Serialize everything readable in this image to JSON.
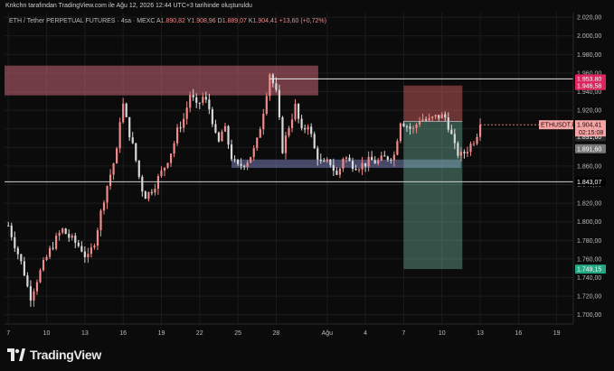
{
  "header": {
    "credit": "Knkchn tarafından TradingView.com ile Ağu 12, 2026 12:44 UTC+3 tarihinde oluşturuldu"
  },
  "symbol_bar": {
    "name": "ETH / Tether PERPETUAL FUTURES · 4sa · MEXC",
    "o_label": "A",
    "o_value": "1.890,82",
    "h_label": "Y",
    "h_value": "1.908,96",
    "l_label": "D",
    "l_value": "1.889,07",
    "c_label": "K",
    "c_value": "1.904,41",
    "change": "+13,60 (+0,72%)"
  },
  "brand": {
    "name": "TradingView"
  },
  "colors": {
    "up": "#f28b8b",
    "down": "#d9d9d9",
    "bg": "#0b0b0b",
    "grid": "#1c1c1c",
    "accent_red": "#e0245e"
  },
  "chart_data": {
    "type": "candlestick",
    "timeframe": "4h",
    "ylim": [
      1690,
      2025
    ],
    "y_ticks": [
      "2.020,00",
      "2.000,00",
      "1.980,00",
      "1.960,00",
      "1.940,00",
      "1.920,00",
      "1.900,00",
      "1.880,00",
      "1.860,00",
      "1.840,00",
      "1.820,00",
      "1.800,00",
      "1.780,00",
      "1.760,00",
      "1.740,00",
      "1.720,00",
      "1.700,00"
    ],
    "y_tick_values": [
      2020,
      2000,
      1980,
      1960,
      1940,
      1920,
      1900,
      1880,
      1860,
      1840,
      1820,
      1800,
      1780,
      1760,
      1740,
      1720,
      1700
    ],
    "x_ticks": [
      {
        "label": "7",
        "day": 0
      },
      {
        "label": "10",
        "day": 3
      },
      {
        "label": "13",
        "day": 6
      },
      {
        "label": "16",
        "day": 9
      },
      {
        "label": "19",
        "day": 12
      },
      {
        "label": "22",
        "day": 15
      },
      {
        "label": "25",
        "day": 18
      },
      {
        "label": "28",
        "day": 21
      },
      {
        "label": "Ağu",
        "day": 25
      },
      {
        "label": "4",
        "day": 28
      },
      {
        "label": "7",
        "day": 31
      },
      {
        "label": "10",
        "day": 34
      },
      {
        "label": "13",
        "day": 37
      },
      {
        "label": "16",
        "day": 40
      },
      {
        "label": "19",
        "day": 43
      }
    ],
    "x_day_range": [
      -0.3,
      44.3
    ],
    "last_day": 37,
    "anchors": [
      [
        0,
        1796
      ],
      [
        1.2,
        1748
      ],
      [
        1.7,
        1718
      ],
      [
        2.3,
        1740
      ],
      [
        3.2,
        1768
      ],
      [
        4.2,
        1792
      ],
      [
        4.8,
        1783
      ],
      [
        5.7,
        1772
      ],
      [
        6.2,
        1759
      ],
      [
        6.8,
        1781
      ],
      [
        7.6,
        1832
      ],
      [
        8.5,
        1875
      ],
      [
        8.9,
        1932
      ],
      [
        9.3,
        1906
      ],
      [
        9.9,
        1873
      ],
      [
        10.4,
        1838
      ],
      [
        10.8,
        1827
      ],
      [
        11.4,
        1838
      ],
      [
        12.2,
        1858
      ],
      [
        12.9,
        1880
      ],
      [
        13.3,
        1900
      ],
      [
        13.8,
        1912
      ],
      [
        14.3,
        1940
      ],
      [
        14.7,
        1922
      ],
      [
        15.3,
        1935
      ],
      [
        15.9,
        1917
      ],
      [
        16.4,
        1880
      ],
      [
        16.9,
        1904
      ],
      [
        17.5,
        1870
      ],
      [
        17.9,
        1858
      ],
      [
        18.7,
        1865
      ],
      [
        19.4,
        1880
      ],
      [
        19.9,
        1912
      ],
      [
        20.5,
        1960
      ],
      [
        21.0,
        1938
      ],
      [
        21.5,
        1878
      ],
      [
        22.0,
        1903
      ],
      [
        22.5,
        1924
      ],
      [
        23.0,
        1896
      ],
      [
        23.5,
        1906
      ],
      [
        24.0,
        1878
      ],
      [
        24.6,
        1860
      ],
      [
        25.2,
        1865
      ],
      [
        25.8,
        1848
      ],
      [
        26.3,
        1872
      ],
      [
        26.8,
        1863
      ],
      [
        27.4,
        1860
      ],
      [
        27.9,
        1862
      ],
      [
        28.4,
        1866
      ],
      [
        28.9,
        1864
      ],
      [
        29.4,
        1868
      ],
      [
        29.9,
        1870
      ],
      [
        30.3,
        1872
      ],
      [
        30.7,
        1910
      ],
      [
        31.2,
        1904
      ],
      [
        31.7,
        1898
      ],
      [
        32.3,
        1912
      ],
      [
        32.9,
        1908
      ],
      [
        33.4,
        1912
      ],
      [
        33.9,
        1914
      ],
      [
        34.3,
        1912
      ],
      [
        34.6,
        1900
      ],
      [
        35.0,
        1880
      ],
      [
        35.4,
        1870
      ],
      [
        35.8,
        1875
      ],
      [
        36.2,
        1882
      ],
      [
        36.6,
        1890
      ],
      [
        37.0,
        1904.41
      ]
    ],
    "zones": [
      {
        "type": "supply",
        "low": 1936,
        "high": 1968,
        "day_start": -0.3,
        "day_end": 24.3
      },
      {
        "type": "demand",
        "low": 1858,
        "high": 1867,
        "day_start": 17.5,
        "day_end": 35.5
      }
    ],
    "position": {
      "entry": 1908,
      "target": 1946.58,
      "stop": 1749.15,
      "day_start": 31.0,
      "day_end": 35.6,
      "labels": [
        "1.946,58",
        "1.749,15"
      ]
    },
    "lines": [
      {
        "value": 1953.8,
        "label": "1.953,80",
        "day_start": 20.5,
        "color": "#e8e8e8",
        "tag_bg": "#e0245e"
      },
      {
        "value": 1843.07,
        "label": "1.843,07",
        "day_start": -0.3,
        "color": "#d0d0d0",
        "tag_bg": "#000000"
      }
    ],
    "price_tags": [
      {
        "value": 1904.41,
        "label": "ETHUSDT.P",
        "price": "1.904,41",
        "time": "02:15:08"
      },
      {
        "value": 1891.6,
        "label": "1.891,60",
        "bg": "#2a2a2a"
      },
      {
        "value": 1878.6,
        "label": "1.891,60",
        "bg": "#7a7a7a"
      }
    ]
  }
}
